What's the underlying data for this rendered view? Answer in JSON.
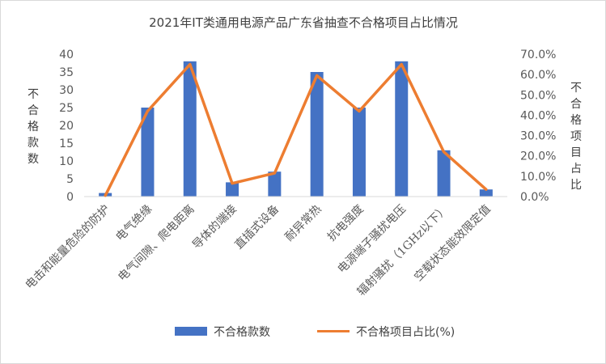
{
  "chart_data": {
    "type": "bar",
    "title": "2021年IT类通用电源产品广东省抽查不合格项目占比情况",
    "categories": [
      "电击和能量危险的防护",
      "电气绝缘",
      "电气间隙、爬电距离",
      "导体的端接",
      "直插式设备",
      "耐异常热",
      "抗电强度",
      "电源端子骚扰电压",
      "辐射骚扰（1GHz以下）",
      "空载状态能效限定值"
    ],
    "series": [
      {
        "name": "不合格款数",
        "type": "bar",
        "axis": "left",
        "color": "#4472c4",
        "values": [
          1,
          25,
          38,
          4,
          7,
          35,
          25,
          38,
          13,
          2
        ]
      },
      {
        "name": "不合格项目占比(%)",
        "type": "line",
        "axis": "right",
        "color": "#ed7d31",
        "values": [
          0.5,
          42.0,
          65.0,
          6.5,
          11.5,
          59.5,
          42.0,
          65.0,
          22.0,
          3.5
        ]
      }
    ],
    "ylabel": "不合格款数",
    "y2label": "不合格项目占比",
    "ylim": [
      0,
      40
    ],
    "yticks": [
      "0",
      "5",
      "10",
      "15",
      "20",
      "25",
      "30",
      "35",
      "40"
    ],
    "y2lim": [
      0,
      70
    ],
    "y2ticks": [
      "0.0%",
      "10.0%",
      "20.0%",
      "30.0%",
      "40.0%",
      "50.0%",
      "60.0%",
      "70.0%"
    ],
    "grid": false,
    "legend_position": "bottom"
  }
}
